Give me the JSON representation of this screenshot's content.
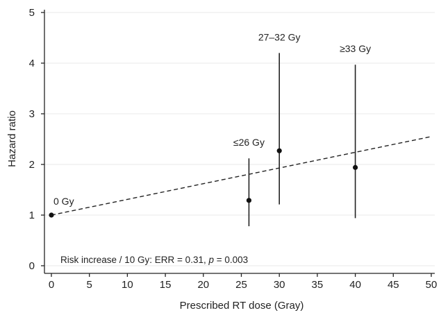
{
  "chart_data": {
    "type": "scatter",
    "xlabel": "Prescribed RT dose (Gray)",
    "ylabel": "Hazard ratio",
    "xlim": [
      0,
      50
    ],
    "ylim": [
      0,
      5
    ],
    "xticks": [
      0,
      5,
      10,
      15,
      20,
      25,
      30,
      35,
      40,
      45,
      50
    ],
    "yticks": [
      0,
      1,
      2,
      3,
      4,
      5
    ],
    "grid": "horizontal",
    "points": [
      {
        "label": "0 Gy",
        "x": 0,
        "y": 1.0,
        "lower": 1.0,
        "upper": 1.0
      },
      {
        "label": "≤26 Gy",
        "x": 26,
        "y": 1.29,
        "lower": 0.78,
        "upper": 2.12
      },
      {
        "label": "27–32 Gy",
        "x": 30,
        "y": 2.27,
        "lower": 1.21,
        "upper": 4.2
      },
      {
        "label": "≥33 Gy",
        "x": 40,
        "y": 1.94,
        "lower": 0.94,
        "upper": 3.97
      }
    ],
    "trend_line": {
      "style": "dashed",
      "x": [
        0,
        50
      ],
      "y": [
        1.0,
        2.55
      ]
    },
    "annotation": {
      "prefix": "Risk increase / 10 Gy: ERR = 0.31, ",
      "p_symbol": "p",
      "suffix": " = 0.003"
    }
  }
}
